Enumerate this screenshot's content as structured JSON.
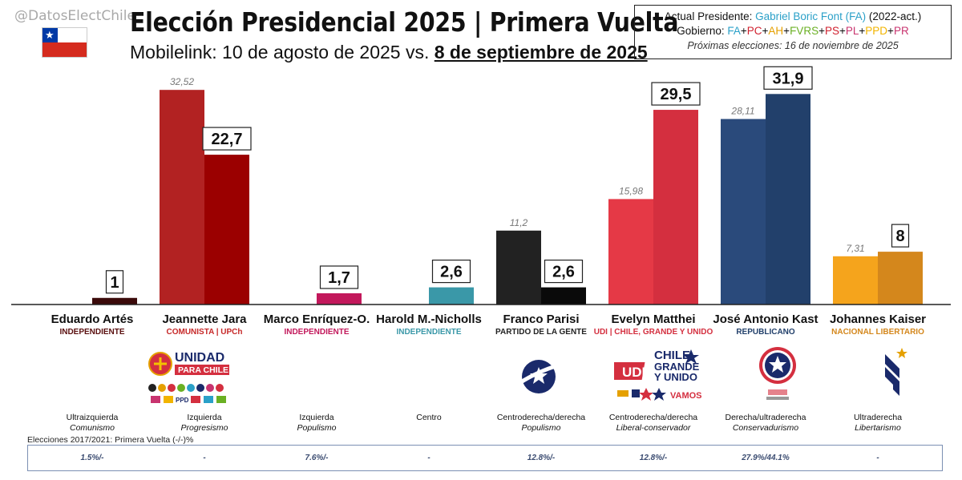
{
  "header": {
    "handle": "@DatosElectChile",
    "title": "Elección Presidencial 2025 | Primera Vuelta",
    "subtitle_prefix": "Mobilelink: 10 de agosto de 2025 vs. ",
    "subtitle_second": "8 de septiembre de 2025"
  },
  "infobox": {
    "line1_label": "Actual Presidente: ",
    "line1_name": "Gabriel Boric Font (FA)",
    "line1_period": " (2022-act.)",
    "line2_label": "Gobierno: ",
    "coalition": [
      {
        "name": "FA",
        "color": "#2aa0c8"
      },
      {
        "name": "PC",
        "color": "#d0202e"
      },
      {
        "name": "AH",
        "color": "#e5a000"
      },
      {
        "name": "FVRS",
        "color": "#6ab023"
      },
      {
        "name": "PS",
        "color": "#d0202e"
      },
      {
        "name": "PL",
        "color": "#c8346f"
      },
      {
        "name": "PPD",
        "color": "#f2b400"
      },
      {
        "name": "PR",
        "color": "#c8346f"
      }
    ],
    "line3": "Próximas elecciones: 16 de noviembre de 2025"
  },
  "chart_data": {
    "type": "bar",
    "categories": [
      "Eduardo Artés",
      "Jeannette Jara",
      "Marco Enríquez-O.",
      "Harold M.-Nicholls",
      "Franco Parisi",
      "Evelyn Matthei",
      "José Antonio Kast",
      "Johannes Kaiser"
    ],
    "series": [
      {
        "name": "10 de agosto de 2025",
        "values": [
          null,
          32.52,
          null,
          null,
          11.2,
          15.98,
          28.11,
          7.31
        ],
        "labels": [
          "",
          "32,52",
          "",
          "",
          "11,2",
          "15,98",
          "28,11",
          "7,31"
        ]
      },
      {
        "name": "8 de septiembre de 2025",
        "values": [
          1,
          22.7,
          1.7,
          2.6,
          2.6,
          29.5,
          31.9,
          8
        ],
        "labels": [
          "1",
          "22,7",
          "1,7",
          "2,6",
          "2,6",
          "29,5",
          "31,9",
          "8"
        ]
      }
    ],
    "colors_first": [
      "#3b0a0a",
      "#b22222",
      "#c2185b",
      "#3a98a8",
      "#222222",
      "#e53946",
      "#2a4a7b",
      "#f5a41c"
    ],
    "colors_second": [
      "#3b0a0a",
      "#9b0000",
      "#c2185b",
      "#3a98a8",
      "#0a0a0a",
      "#d42f3f",
      "#22406b",
      "#d4871c"
    ],
    "ylim": [
      0,
      34
    ]
  },
  "candidates": [
    {
      "name": "Eduardo Artés",
      "party": "INDEPENDIENTE",
      "party_color": "#5a0f0f",
      "ideology": "Ultraizquierda",
      "ideology_sub": "Comunismo",
      "history": "1.5%/-"
    },
    {
      "name": "Jeannette Jara",
      "party": "COMUNISTA | UPCh",
      "party_color": "#c62828",
      "ideology": "Izquierda",
      "ideology_sub": "Progresismo",
      "history": "-"
    },
    {
      "name": "Marco Enríquez-O.",
      "party": "INDEPENDIENTE",
      "party_color": "#c2185b",
      "ideology": "Izquierda",
      "ideology_sub": "Populismo",
      "history": "7.6%/-"
    },
    {
      "name": "Harold M.-Nicholls",
      "party": "INDEPENDIENTE",
      "party_color": "#3a98a8",
      "ideology": "Centro",
      "ideology_sub": "",
      "history": "-"
    },
    {
      "name": "Franco Parisi",
      "party": "PARTIDO DE LA GENTE",
      "party_color": "#222222",
      "ideology": "Centroderecha/derecha",
      "ideology_sub": "Populismo",
      "history": "12.8%/-"
    },
    {
      "name": "Evelyn Matthei",
      "party": "UDI | CHILE, GRANDE Y UNIDO",
      "party_color": "#d42f3f",
      "ideology": "Centroderecha/derecha",
      "ideology_sub": "Liberal-conservador",
      "history": "12.8%/-"
    },
    {
      "name": "José Antonio Kast",
      "party": "REPUBLICANO",
      "party_color": "#22406b",
      "ideology": "Derecha/ultraderecha",
      "ideology_sub": "Conservadurismo",
      "history": "27.9%/44.1%"
    },
    {
      "name": "Johannes Kaiser",
      "party": "NACIONAL LIBERTARIO",
      "party_color": "#d4871c",
      "ideology": "Ultraderecha",
      "ideology_sub": "Libertarismo",
      "history": "-"
    }
  ],
  "logos": {
    "jara_line1": "UNIDAD",
    "jara_line2": "PARA CHILE",
    "jara_small": "PPD",
    "matthei_udi": "UDI",
    "matthei_line1": "CHILE",
    "matthei_line2": "GRANDE",
    "matthei_line3": "Y UNIDO",
    "matthei_vamos": "VAMOS"
  },
  "history_label": "Elecciones 2017/2021: Primera Vuelta (-/-)%"
}
